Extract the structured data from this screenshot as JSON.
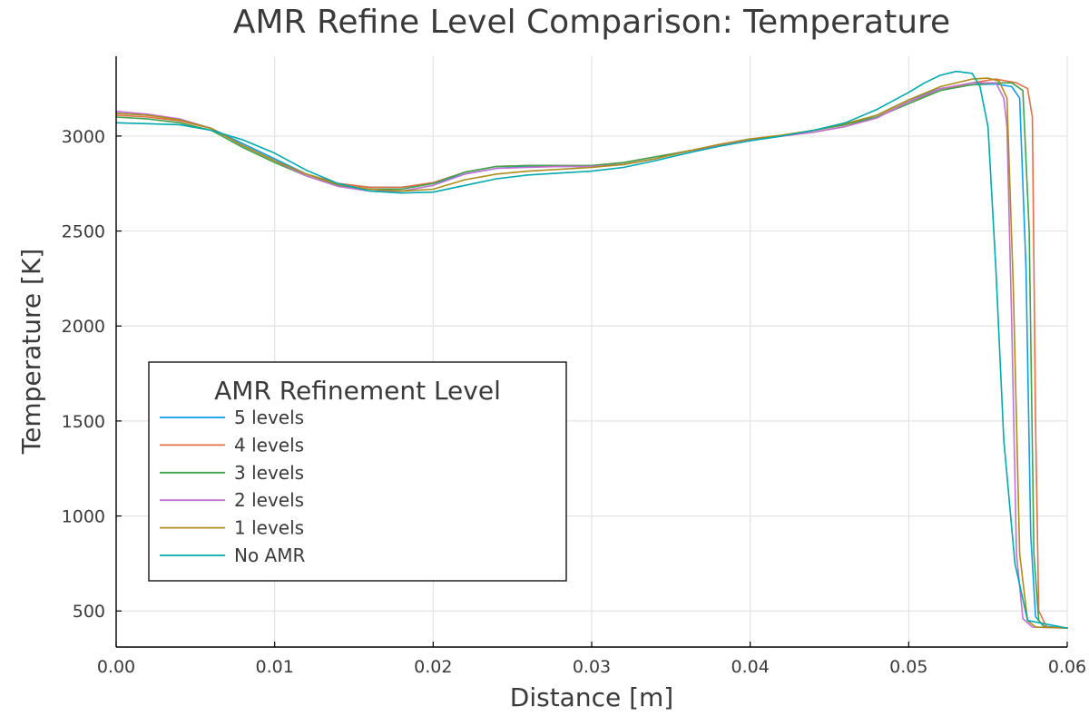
{
  "chart_data": {
    "type": "line",
    "title": "AMR Refine Level Comparison: Temperature",
    "xlabel": "Distance [m]",
    "ylabel": "Temperature [K]",
    "xlim": [
      0.0,
      0.06
    ],
    "ylim": [
      310,
      3420
    ],
    "xticks": [
      0.0,
      0.01,
      0.02,
      0.03,
      0.04,
      0.05,
      0.06
    ],
    "xtick_labels": [
      "0.00",
      "0.01",
      "0.02",
      "0.03",
      "0.04",
      "0.05",
      "0.06"
    ],
    "yticks": [
      500,
      1000,
      1500,
      2000,
      2500,
      3000
    ],
    "ytick_labels": [
      "500",
      "1000",
      "1500",
      "2000",
      "2500",
      "3000"
    ],
    "grid": true,
    "legend": {
      "title": "AMR Refinement Level",
      "position": "lower-left"
    },
    "series": [
      {
        "name": "5 levels",
        "color": "#0a9ff0",
        "x": [
          0.0,
          0.002,
          0.004,
          0.006,
          0.008,
          0.01,
          0.012,
          0.014,
          0.016,
          0.018,
          0.02,
          0.022,
          0.024,
          0.026,
          0.028,
          0.03,
          0.032,
          0.034,
          0.036,
          0.038,
          0.04,
          0.042,
          0.044,
          0.046,
          0.048,
          0.05,
          0.052,
          0.054,
          0.0555,
          0.0565,
          0.057,
          0.0574,
          0.0577,
          0.058,
          0.0585,
          0.06
        ],
        "y": [
          3120,
          3110,
          3090,
          3040,
          2960,
          2880,
          2800,
          2750,
          2730,
          2730,
          2750,
          2800,
          2830,
          2840,
          2840,
          2840,
          2850,
          2880,
          2920,
          2950,
          2980,
          3000,
          3030,
          3060,
          3110,
          3190,
          3250,
          3270,
          3275,
          3260,
          3200,
          2300,
          900,
          470,
          420,
          410
        ]
      },
      {
        "name": "4 levels",
        "color": "#e26f46",
        "x": [
          0.0,
          0.002,
          0.004,
          0.006,
          0.008,
          0.01,
          0.012,
          0.014,
          0.016,
          0.018,
          0.02,
          0.022,
          0.024,
          0.026,
          0.028,
          0.03,
          0.032,
          0.034,
          0.036,
          0.038,
          0.04,
          0.042,
          0.044,
          0.046,
          0.048,
          0.05,
          0.052,
          0.054,
          0.0555,
          0.0568,
          0.0575,
          0.0578,
          0.058,
          0.0582,
          0.0587,
          0.06
        ],
        "y": [
          3110,
          3100,
          3080,
          3040,
          2950,
          2870,
          2800,
          2750,
          2730,
          2730,
          2755,
          2810,
          2840,
          2845,
          2845,
          2845,
          2860,
          2890,
          2920,
          2950,
          2980,
          3000,
          3020,
          3050,
          3100,
          3180,
          3240,
          3280,
          3300,
          3280,
          3250,
          3100,
          1500,
          500,
          415,
          410
        ]
      },
      {
        "name": "3 levels",
        "color": "#3da44d",
        "x": [
          0.0,
          0.002,
          0.004,
          0.006,
          0.008,
          0.01,
          0.012,
          0.014,
          0.016,
          0.018,
          0.02,
          0.022,
          0.024,
          0.026,
          0.028,
          0.03,
          0.032,
          0.034,
          0.036,
          0.038,
          0.04,
          0.042,
          0.044,
          0.046,
          0.048,
          0.05,
          0.052,
          0.054,
          0.0555,
          0.0565,
          0.0572,
          0.0576,
          0.0579,
          0.0582,
          0.0586,
          0.06
        ],
        "y": [
          3100,
          3090,
          3070,
          3030,
          2940,
          2860,
          2790,
          2740,
          2720,
          2720,
          2750,
          2810,
          2840,
          2845,
          2845,
          2845,
          2860,
          2890,
          2920,
          2950,
          2980,
          3000,
          3030,
          3060,
          3100,
          3170,
          3240,
          3270,
          3280,
          3280,
          3240,
          2500,
          800,
          450,
          415,
          410
        ]
      },
      {
        "name": "2 levels",
        "color": "#c271d2",
        "x": [
          0.0,
          0.002,
          0.004,
          0.006,
          0.008,
          0.01,
          0.012,
          0.014,
          0.016,
          0.018,
          0.02,
          0.022,
          0.024,
          0.026,
          0.028,
          0.03,
          0.032,
          0.034,
          0.036,
          0.038,
          0.04,
          0.042,
          0.044,
          0.046,
          0.048,
          0.05,
          0.052,
          0.054,
          0.0555,
          0.056,
          0.0562,
          0.0565,
          0.0568,
          0.0572,
          0.0578,
          0.06
        ],
        "y": [
          3130,
          3115,
          3090,
          3040,
          2950,
          2870,
          2790,
          2735,
          2710,
          2710,
          2740,
          2800,
          2830,
          2835,
          2840,
          2840,
          2850,
          2880,
          2920,
          2950,
          2980,
          3000,
          3020,
          3050,
          3095,
          3180,
          3250,
          3280,
          3280,
          3200,
          3050,
          2000,
          800,
          460,
          415,
          410
        ]
      },
      {
        "name": "1 levels",
        "color": "#ac8d18",
        "x": [
          0.0,
          0.002,
          0.004,
          0.006,
          0.008,
          0.01,
          0.012,
          0.014,
          0.016,
          0.018,
          0.02,
          0.022,
          0.024,
          0.026,
          0.028,
          0.03,
          0.032,
          0.034,
          0.036,
          0.038,
          0.04,
          0.042,
          0.044,
          0.046,
          0.048,
          0.05,
          0.052,
          0.054,
          0.055,
          0.0557,
          0.0562,
          0.0566,
          0.057,
          0.0575,
          0.058,
          0.06
        ],
        "y": [
          3120,
          3110,
          3085,
          3040,
          2950,
          2870,
          2800,
          2745,
          2720,
          2710,
          2720,
          2770,
          2800,
          2815,
          2825,
          2835,
          2850,
          2880,
          2920,
          2955,
          2985,
          3005,
          3030,
          3065,
          3110,
          3190,
          3260,
          3300,
          3305,
          3290,
          3200,
          2200,
          800,
          450,
          415,
          410
        ]
      },
      {
        "name": "No AMR",
        "color": "#00a9ad",
        "x": [
          0.0,
          0.002,
          0.004,
          0.006,
          0.008,
          0.01,
          0.012,
          0.014,
          0.016,
          0.018,
          0.02,
          0.022,
          0.024,
          0.026,
          0.028,
          0.03,
          0.032,
          0.034,
          0.036,
          0.038,
          0.04,
          0.042,
          0.044,
          0.046,
          0.048,
          0.05,
          0.051,
          0.052,
          0.053,
          0.054,
          0.0545,
          0.055,
          0.0555,
          0.056,
          0.0567,
          0.0575,
          0.06
        ],
        "y": [
          3070,
          3065,
          3060,
          3030,
          2980,
          2910,
          2820,
          2750,
          2710,
          2700,
          2705,
          2740,
          2775,
          2795,
          2805,
          2815,
          2835,
          2870,
          2910,
          2945,
          2975,
          3000,
          3030,
          3070,
          3140,
          3230,
          3280,
          3320,
          3340,
          3330,
          3260,
          3050,
          2300,
          1400,
          750,
          450,
          410
        ]
      }
    ]
  }
}
